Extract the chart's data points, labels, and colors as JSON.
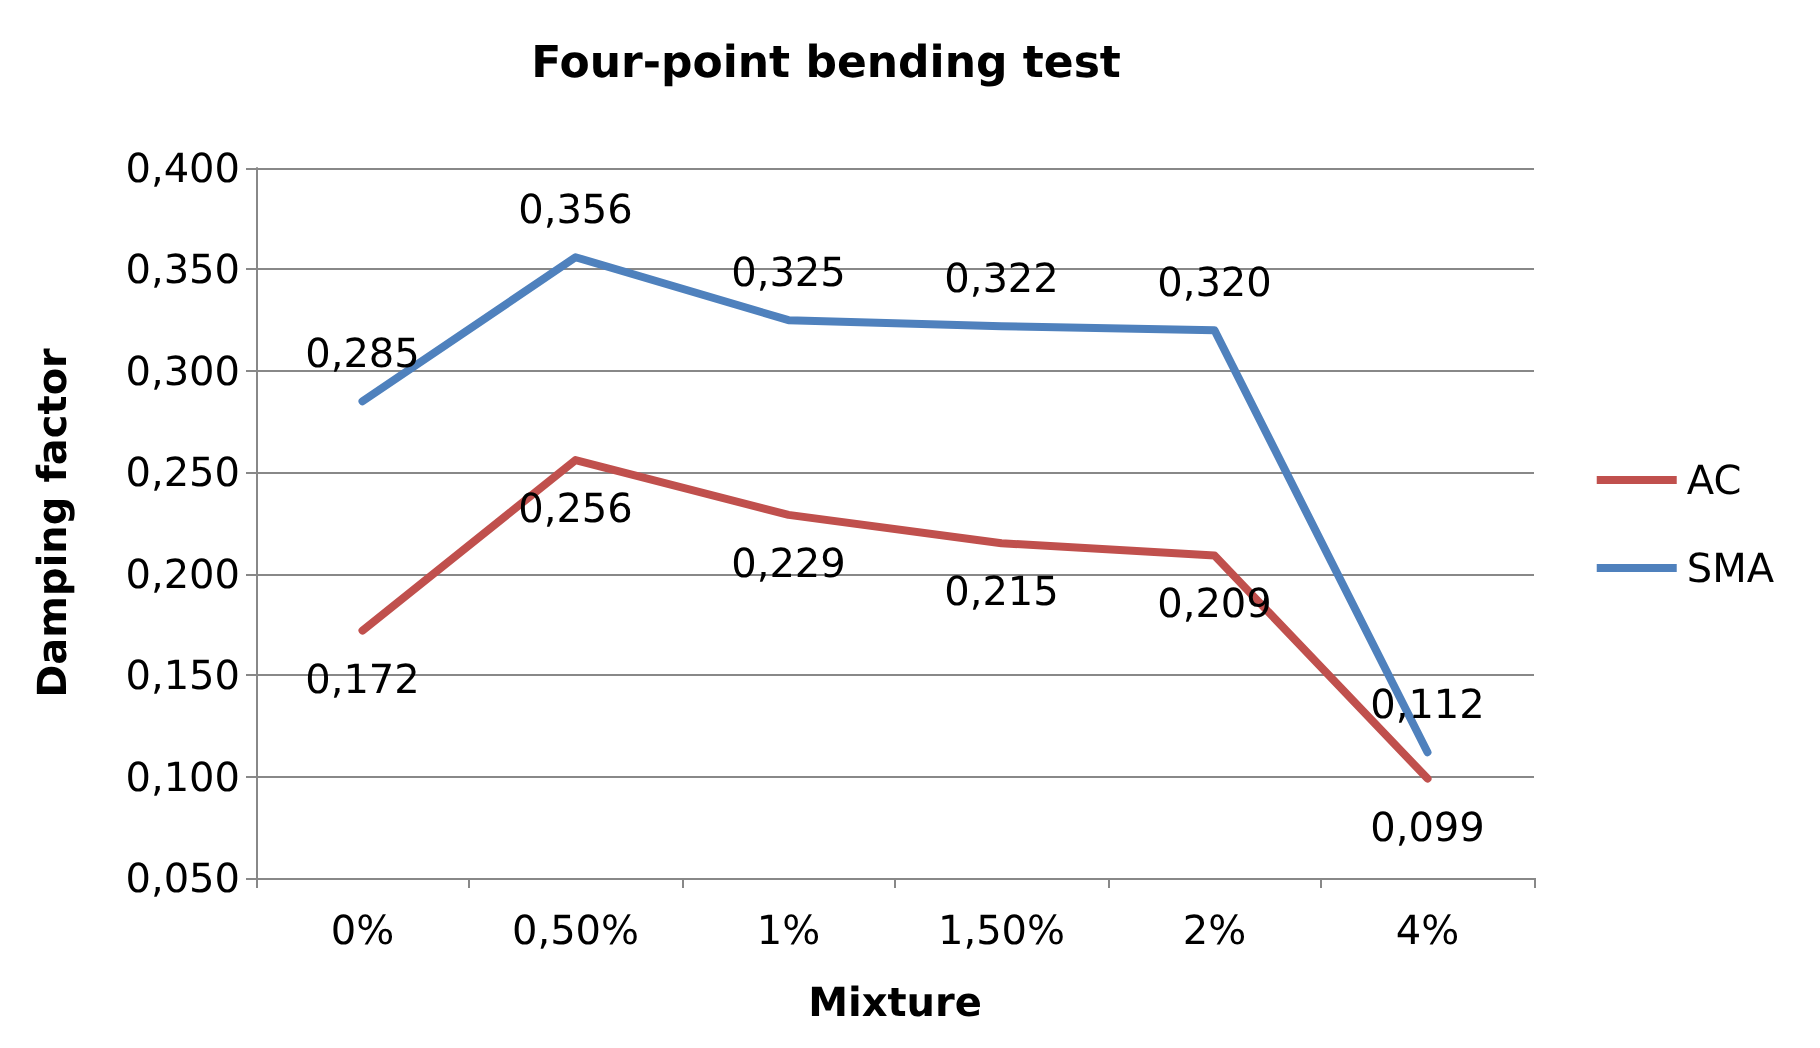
{
  "chart_data": {
    "type": "line",
    "title": "Four-point bending test",
    "xlabel": "Mixture",
    "ylabel": "Damping factor",
    "categories": [
      "0%",
      "0,50%",
      "1%",
      "1,50%",
      "2%",
      "4%"
    ],
    "series": [
      {
        "name": "AC",
        "color": "#c0504d",
        "values": [
          0.172,
          0.256,
          0.229,
          0.215,
          0.209,
          0.099
        ],
        "value_labels": [
          "0,172",
          "0,256",
          "0,229",
          "0,215",
          "0,209",
          "0,099"
        ]
      },
      {
        "name": "SMA",
        "color": "#4f81bd",
        "values": [
          0.285,
          0.356,
          0.325,
          0.322,
          0.32,
          0.112
        ],
        "value_labels": [
          "0,285",
          "0,356",
          "0,325",
          "0,322",
          "0,320",
          "0,112"
        ]
      }
    ],
    "ylim": [
      0.05,
      0.4
    ],
    "yticks": [
      {
        "value": 0.05,
        "label": "0,050"
      },
      {
        "value": 0.1,
        "label": "0,100"
      },
      {
        "value": 0.15,
        "label": "0,150"
      },
      {
        "value": 0.2,
        "label": "0,200"
      },
      {
        "value": 0.25,
        "label": "0,250"
      },
      {
        "value": 0.3,
        "label": "0,300"
      },
      {
        "value": 0.35,
        "label": "0,350"
      },
      {
        "value": 0.4,
        "label": "0,400"
      }
    ],
    "grid": "y",
    "legend": "right",
    "marker": "none",
    "line_style": "solid"
  }
}
